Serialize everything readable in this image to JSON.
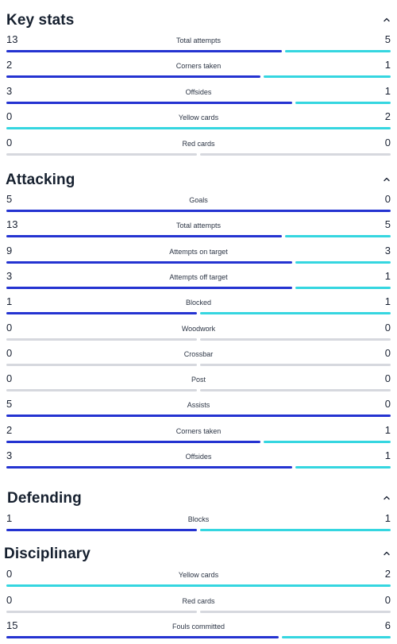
{
  "colors": {
    "home_bar": "#2433d1",
    "away_bar": "#35d6e0",
    "empty_bar": "#d6d8de"
  },
  "sections": [
    {
      "title": "Key stats",
      "icon": "chevron-up-icon",
      "stats": [
        {
          "label": "Total attempts",
          "home": 13,
          "away": 5
        },
        {
          "label": "Corners taken",
          "home": 2,
          "away": 1
        },
        {
          "label": "Offsides",
          "home": 3,
          "away": 1
        },
        {
          "label": "Yellow cards",
          "home": 0,
          "away": 2
        },
        {
          "label": "Red cards",
          "home": 0,
          "away": 0
        }
      ]
    },
    {
      "title": "Attacking",
      "icon": "chevron-up-icon",
      "stats": [
        {
          "label": "Goals",
          "home": 5,
          "away": 0
        },
        {
          "label": "Total attempts",
          "home": 13,
          "away": 5
        },
        {
          "label": "Attempts on target",
          "home": 9,
          "away": 3
        },
        {
          "label": "Attempts off target",
          "home": 3,
          "away": 1
        },
        {
          "label": "Blocked",
          "home": 1,
          "away": 1
        },
        {
          "label": "Woodwork",
          "home": 0,
          "away": 0
        },
        {
          "label": "Crossbar",
          "home": 0,
          "away": 0
        },
        {
          "label": "Post",
          "home": 0,
          "away": 0
        },
        {
          "label": "Assists",
          "home": 5,
          "away": 0
        },
        {
          "label": "Corners taken",
          "home": 2,
          "away": 1
        },
        {
          "label": "Offsides",
          "home": 3,
          "away": 1
        }
      ]
    },
    {
      "title": "Defending",
      "icon": "chevron-up-icon",
      "stats": [
        {
          "label": "Blocks",
          "home": 1,
          "away": 1
        }
      ]
    },
    {
      "title": "Disciplinary",
      "icon": "chevron-up-icon",
      "stats": [
        {
          "label": "Yellow cards",
          "home": 0,
          "away": 2
        },
        {
          "label": "Red cards",
          "home": 0,
          "away": 0
        },
        {
          "label": "Fouls committed",
          "home": 15,
          "away": 6
        }
      ]
    }
  ]
}
